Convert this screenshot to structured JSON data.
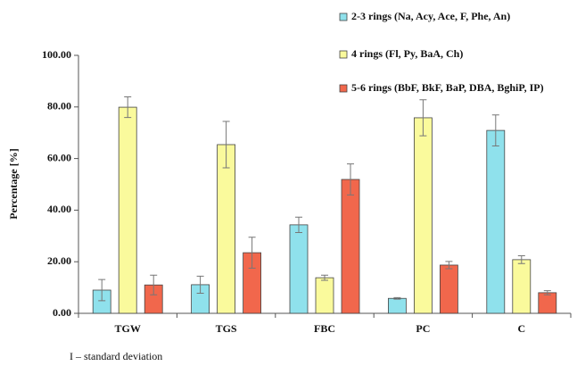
{
  "chart_data": {
    "type": "bar",
    "y_label": "Percentage [%]",
    "note": "I – standard deviation",
    "categories": [
      "TGW",
      "TGS",
      "FBC",
      "PC",
      "C"
    ],
    "series": [
      {
        "name": "2-3 rings (Na, Acy, Ace, F, Phe, An)",
        "color": "#8fe1ec",
        "values": [
          9.0,
          11.1,
          34.3,
          5.8,
          70.9
        ],
        "errors": [
          4.1,
          3.3,
          3.0,
          0.3,
          6.0
        ]
      },
      {
        "name": "4 rings (Fl, Py, BaA, Ch)",
        "color": "#fafa9c",
        "values": [
          79.9,
          65.4,
          13.8,
          75.8,
          20.8
        ],
        "errors": [
          4.0,
          9.0,
          1.0,
          7.0,
          1.5
        ]
      },
      {
        "name": "5-6 rings  (BbF, BkF, BaP, DBA, BghiP, IP)",
        "color": "#f1674c",
        "values": [
          11.0,
          23.5,
          51.9,
          18.7,
          8.0
        ],
        "errors": [
          3.8,
          6.0,
          6.0,
          1.4,
          0.8
        ]
      }
    ],
    "ylim": [
      0,
      100
    ],
    "yticks": [
      {
        "value": 0,
        "label": "0.00"
      },
      {
        "value": 20,
        "label": "20.00"
      },
      {
        "value": 40,
        "label": "40.00"
      },
      {
        "value": 60,
        "label": "60.00"
      },
      {
        "value": 80,
        "label": "80.00"
      },
      {
        "value": 100,
        "label": "100.00"
      }
    ]
  }
}
